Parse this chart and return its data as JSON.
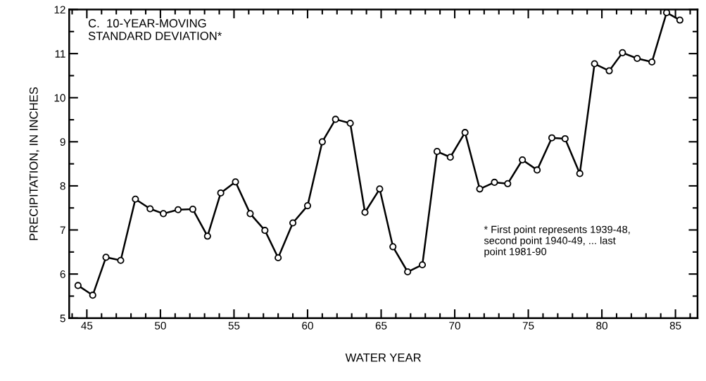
{
  "chart_data": {
    "type": "line",
    "xlabel": "WATER YEAR",
    "ylabel": "PRECIPITATION, IN INCHES",
    "annotations": [
      "C.  10-YEAR-MOVING\nSTANDARD DEVIATION*",
      "* First point represents 1939-48,\nsecond point 1940-49, ... last\npoint 1981-90"
    ],
    "x": [
      44.4,
      45.4,
      46.3,
      47.3,
      48.3,
      49.3,
      50.2,
      51.2,
      52.2,
      53.2,
      54.1,
      55.1,
      56.1,
      57.1,
      58.0,
      59.0,
      60.0,
      61.0,
      61.9,
      62.9,
      63.9,
      64.9,
      65.8,
      66.8,
      67.8,
      68.8,
      69.7,
      70.7,
      71.7,
      72.7,
      73.6,
      74.6,
      75.6,
      76.6,
      77.5,
      78.5,
      79.5,
      80.5,
      81.4,
      82.4,
      83.4,
      84.4,
      85.3
    ],
    "series": [
      {
        "color": "#000000",
        "values": [
          5.74,
          5.52,
          6.38,
          6.31,
          7.7,
          7.48,
          7.37,
          7.46,
          7.47,
          6.86,
          7.84,
          8.09,
          7.37,
          6.99,
          6.37,
          7.16,
          7.55,
          9.0,
          9.51,
          9.42,
          7.4,
          7.93,
          6.62,
          6.05,
          6.21,
          8.78,
          8.65,
          9.21,
          7.93,
          8.08,
          8.05,
          8.59,
          8.36,
          9.09,
          9.07,
          8.28,
          10.77,
          10.61,
          11.02,
          10.89,
          10.81,
          11.93,
          11.76
        ]
      }
    ],
    "xlim": [
      43.8,
      86.5
    ],
    "ylim": [
      5,
      12
    ],
    "xticks": [
      45,
      50,
      55,
      60,
      65,
      70,
      75,
      80,
      85
    ],
    "yticks": [
      5,
      6,
      7,
      8,
      9,
      10,
      11,
      12
    ],
    "marker": "circle",
    "line_style": "solid",
    "grid": false
  }
}
